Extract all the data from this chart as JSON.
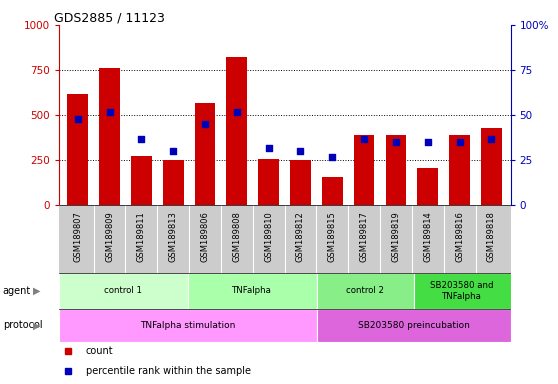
{
  "title": "GDS2885 / 11123",
  "samples": [
    "GSM189807",
    "GSM189809",
    "GSM189811",
    "GSM189813",
    "GSM189806",
    "GSM189808",
    "GSM189810",
    "GSM189812",
    "GSM189815",
    "GSM189817",
    "GSM189819",
    "GSM189814",
    "GSM189816",
    "GSM189818"
  ],
  "counts": [
    620,
    760,
    275,
    250,
    570,
    820,
    255,
    250,
    160,
    390,
    390,
    210,
    390,
    430
  ],
  "percentiles": [
    48,
    52,
    37,
    30,
    45,
    52,
    32,
    30,
    27,
    37,
    35,
    35,
    35,
    37
  ],
  "ylim_left": [
    0,
    1000
  ],
  "ylim_right": [
    0,
    100
  ],
  "yticks_left": [
    0,
    250,
    500,
    750,
    1000
  ],
  "yticks_right": [
    0,
    25,
    50,
    75,
    100
  ],
  "bar_color": "#cc0000",
  "dot_color": "#0000bb",
  "agent_groups": [
    {
      "label": "control 1",
      "start": 0,
      "end": 4,
      "color": "#ccffcc"
    },
    {
      "label": "TNFalpha",
      "start": 4,
      "end": 8,
      "color": "#aaffaa"
    },
    {
      "label": "control 2",
      "start": 8,
      "end": 11,
      "color": "#88ee88"
    },
    {
      "label": "SB203580 and\nTNFalpha",
      "start": 11,
      "end": 14,
      "color": "#44dd44"
    }
  ],
  "protocol_groups": [
    {
      "label": "TNFalpha stimulation",
      "start": 0,
      "end": 8,
      "color": "#ff99ff"
    },
    {
      "label": "SB203580 preincubation",
      "start": 8,
      "end": 14,
      "color": "#dd66dd"
    }
  ],
  "legend_items": [
    {
      "label": "count",
      "color": "#cc0000"
    },
    {
      "label": "percentile rank within the sample",
      "color": "#0000bb"
    }
  ],
  "tick_bg_color": "#cccccc",
  "left_label_color": "#cc0000",
  "right_label_color": "#0000bb"
}
